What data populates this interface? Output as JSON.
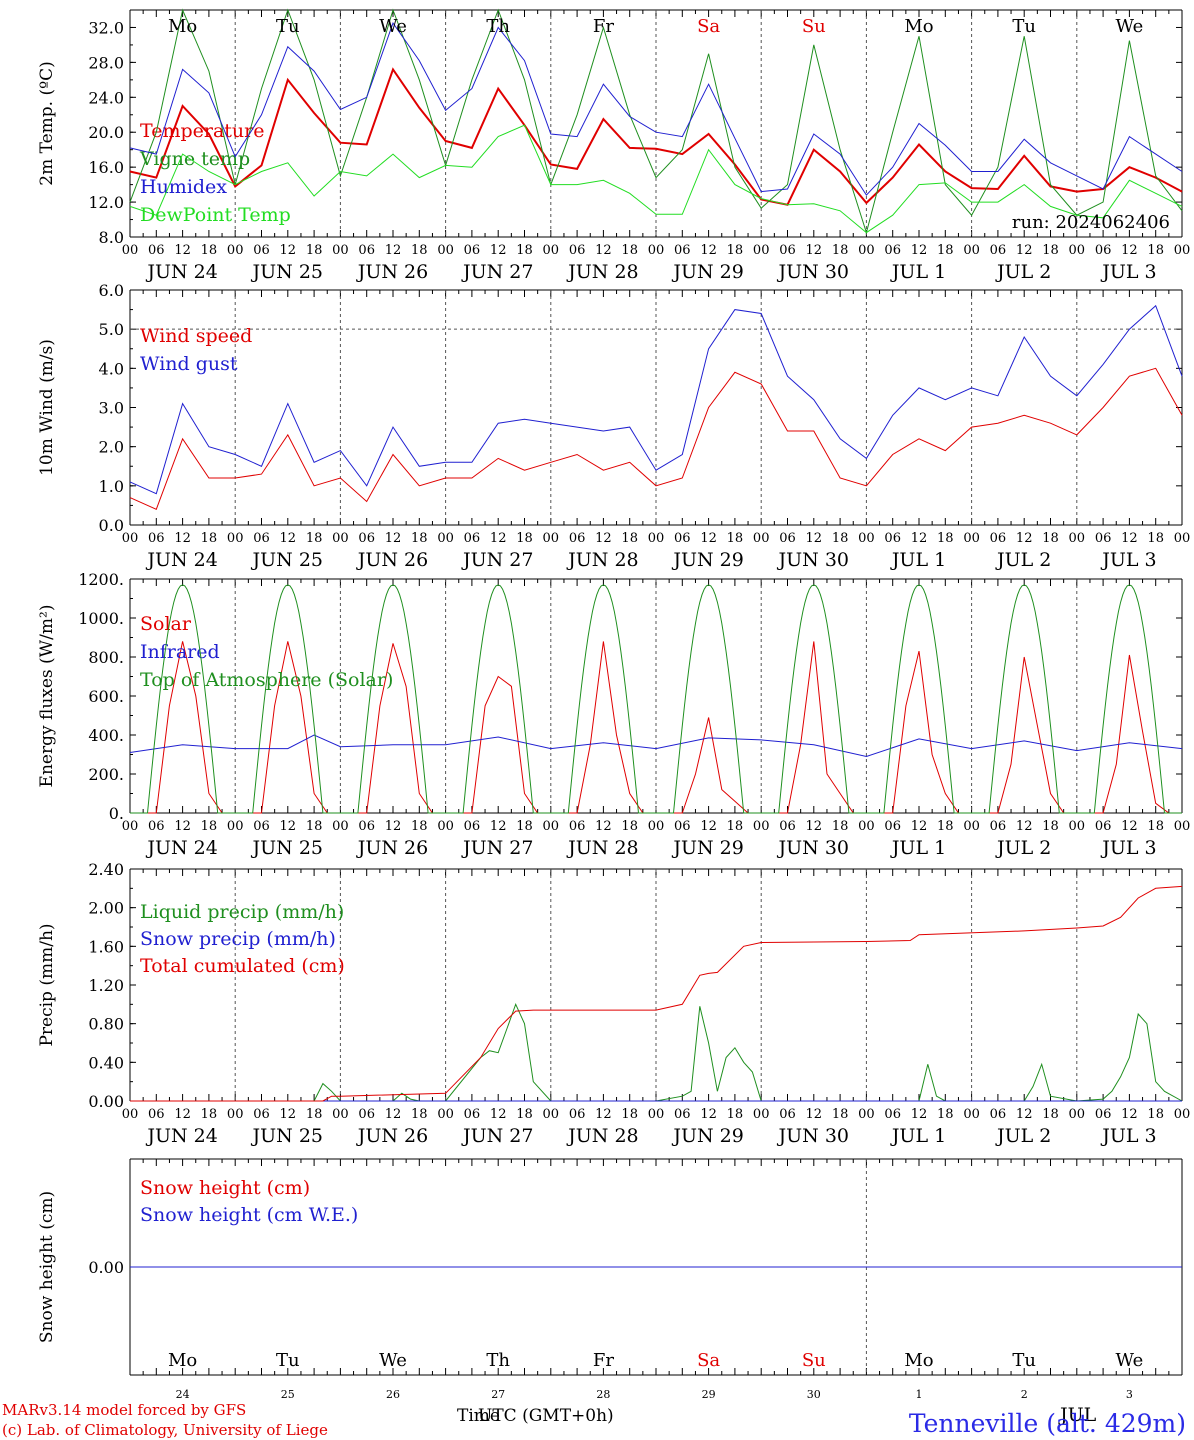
{
  "days": [
    "JUN 24",
    "JUN 25",
    "JUN 26",
    "JUN 27",
    "JUN 28",
    "JUN 29",
    "JUN 30",
    "JUL  1",
    "JUL  2",
    "JUL  3"
  ],
  "weekdays": [
    "Mo",
    "Tu",
    "We",
    "Th",
    "Fr",
    "Sa",
    "Su",
    "Mo",
    "Tu",
    "We"
  ],
  "weekday_colors": [
    "#000",
    "#000",
    "#000",
    "#000",
    "#000",
    "#e00000",
    "#e00000",
    "#000",
    "#000",
    "#000"
  ],
  "hour_ticks": [
    "00",
    "06",
    "12",
    "18"
  ],
  "end_tick": "00",
  "bottom_day_numbers": [
    "24",
    "25",
    "26",
    "27",
    "28",
    "29",
    "30",
    "1",
    "2",
    "3"
  ],
  "run_label": "run: 2024062406",
  "footer": {
    "line1": "MARv3.14 model forced by GFS",
    "line2": "(c) Lab. of Climatology, University of Liege",
    "xlabel": "Time",
    "xlabel2": "UTC (GMT+0h)",
    "month": "JUL",
    "location": "Tenneville (alt. 429m)"
  },
  "chart_data": [
    {
      "type": "line",
      "ylabel": "2m Temp. (ºC)",
      "ylim": [
        8,
        34
      ],
      "yticks": [
        "8.0",
        "12.0",
        "16.0",
        "20.0",
        "24.0",
        "28.0",
        "32.0"
      ],
      "ytick_values": [
        8,
        12,
        16,
        20,
        24,
        28,
        32
      ],
      "x_unit": "hours since 2024-06-24 00 UTC",
      "series": [
        {
          "name": "Temperature",
          "color": "#e00000",
          "x": [
            0,
            6,
            12,
            18,
            24,
            30,
            36,
            42,
            48,
            54,
            60,
            66,
            72,
            78,
            84,
            90,
            96,
            102,
            108,
            114,
            120,
            126,
            132,
            138,
            144,
            150,
            156,
            162,
            168,
            174,
            180,
            186,
            192,
            198,
            204,
            210,
            216,
            222,
            228,
            234,
            240
          ],
          "values": [
            15.5,
            14.8,
            23.0,
            19.8,
            13.8,
            16.2,
            26.0,
            22.2,
            18.8,
            18.6,
            27.2,
            22.8,
            19.0,
            18.2,
            25.0,
            20.8,
            16.3,
            15.8,
            21.5,
            18.2,
            18.1,
            17.5,
            19.8,
            16.3,
            12.3,
            11.7,
            18.0,
            15.5,
            11.9,
            14.8,
            18.6,
            15.5,
            13.6,
            13.5,
            17.3,
            13.8,
            13.2,
            13.5,
            16.0,
            14.8,
            13.2
          ],
          "width": 2
        },
        {
          "name": "Vigne temp",
          "color": "#1f8f1f",
          "x": [
            0,
            6,
            12,
            18,
            24,
            30,
            36,
            42,
            48,
            54,
            60,
            66,
            72,
            78,
            84,
            90,
            96,
            102,
            108,
            114,
            120,
            126,
            132,
            138,
            144,
            150,
            156,
            162,
            168,
            174,
            180,
            186,
            192,
            198,
            204,
            210,
            216,
            222,
            228,
            234,
            240
          ],
          "values": [
            12.0,
            20.0,
            34.0,
            27.0,
            14.0,
            25.0,
            34.0,
            26.0,
            15.0,
            24.0,
            34.0,
            26.0,
            16.2,
            26.0,
            34.0,
            26.0,
            14.0,
            22.0,
            32.0,
            22.0,
            14.8,
            18.0,
            29.0,
            16.0,
            11.3,
            14.0,
            30.0,
            18.0,
            8.5,
            20.0,
            31.0,
            14.0,
            10.5,
            16.0,
            31.0,
            14.0,
            10.5,
            12.0,
            30.5,
            15.0,
            11.0
          ],
          "width": 1
        },
        {
          "name": "Humidex",
          "color": "#2020d0",
          "x": [
            0,
            6,
            12,
            18,
            24,
            30,
            36,
            42,
            48,
            54,
            60,
            66,
            72,
            78,
            84,
            90,
            96,
            102,
            108,
            114,
            120,
            126,
            132,
            138,
            144,
            150,
            156,
            162,
            168,
            174,
            180,
            186,
            192,
            198,
            204,
            210,
            216,
            222,
            228,
            234,
            240
          ],
          "values": [
            18.2,
            17.5,
            27.2,
            24.5,
            17.2,
            22.0,
            29.8,
            27.0,
            22.6,
            24.0,
            32.5,
            28.2,
            22.5,
            25.0,
            32.0,
            28.2,
            19.8,
            19.5,
            25.5,
            21.8,
            20.0,
            19.5,
            25.5,
            19.3,
            13.2,
            13.5,
            19.8,
            17.5,
            12.8,
            16.0,
            21.0,
            18.5,
            15.5,
            15.5,
            19.2,
            16.5,
            15.0,
            13.5,
            19.5,
            17.5,
            15.5
          ],
          "width": 1
        },
        {
          "name": "DewPoint Temp",
          "color": "#22dd22",
          "x": [
            0,
            6,
            12,
            18,
            24,
            30,
            36,
            42,
            48,
            54,
            60,
            66,
            72,
            78,
            84,
            90,
            96,
            102,
            108,
            114,
            120,
            126,
            132,
            138,
            144,
            150,
            156,
            162,
            168,
            174,
            180,
            186,
            192,
            198,
            204,
            210,
            216,
            222,
            228,
            234,
            240
          ],
          "values": [
            11.5,
            10.5,
            17.5,
            15.5,
            14.0,
            15.5,
            16.5,
            12.7,
            15.5,
            15.0,
            17.5,
            14.8,
            16.2,
            16.0,
            19.5,
            20.8,
            14.0,
            14.0,
            14.5,
            13.0,
            10.6,
            10.6,
            18.0,
            14.0,
            12.4,
            11.7,
            11.8,
            11.0,
            8.5,
            10.5,
            14.0,
            14.2,
            12.0,
            12.0,
            14.0,
            11.5,
            10.5,
            10.2,
            14.5,
            13.0,
            11.5
          ],
          "width": 1
        }
      ]
    },
    {
      "type": "line",
      "ylabel": "10m Wind (m/s)",
      "ylim": [
        0,
        6
      ],
      "yticks": [
        "0.0",
        "1.0",
        "2.0",
        "3.0",
        "4.0",
        "5.0",
        "6.0"
      ],
      "ytick_values": [
        0,
        1,
        2,
        3,
        4,
        5,
        6
      ],
      "ref_line": 5.0,
      "x_unit": "hours since 2024-06-24 00 UTC",
      "series": [
        {
          "name": "Wind speed",
          "color": "#e00000",
          "x": [
            0,
            6,
            12,
            18,
            24,
            30,
            36,
            42,
            48,
            54,
            60,
            66,
            72,
            78,
            84,
            90,
            96,
            102,
            108,
            114,
            120,
            126,
            132,
            138,
            144,
            150,
            156,
            162,
            168,
            174,
            180,
            186,
            192,
            198,
            204,
            210,
            216,
            222,
            228,
            234,
            240
          ],
          "values": [
            0.7,
            0.4,
            2.2,
            1.2,
            1.2,
            1.3,
            2.3,
            1.0,
            1.2,
            0.6,
            1.8,
            1.0,
            1.2,
            1.2,
            1.7,
            1.4,
            1.6,
            1.8,
            1.4,
            1.6,
            1.0,
            1.2,
            3.0,
            3.9,
            3.6,
            2.4,
            2.4,
            1.2,
            1.0,
            1.8,
            2.2,
            1.9,
            2.5,
            2.6,
            2.8,
            2.6,
            2.3,
            3.0,
            3.8,
            4.0,
            2.8
          ],
          "width": 1
        },
        {
          "name": "Wind gust",
          "color": "#2020d0",
          "x": [
            0,
            6,
            12,
            18,
            24,
            30,
            36,
            42,
            48,
            54,
            60,
            66,
            72,
            78,
            84,
            90,
            96,
            102,
            108,
            114,
            120,
            126,
            132,
            138,
            144,
            150,
            156,
            162,
            168,
            174,
            180,
            186,
            192,
            198,
            204,
            210,
            216,
            222,
            228,
            234,
            240
          ],
          "values": [
            1.1,
            0.8,
            3.1,
            2.0,
            1.8,
            1.5,
            3.1,
            1.6,
            1.9,
            1.0,
            2.5,
            1.5,
            1.6,
            1.6,
            2.6,
            2.7,
            2.6,
            2.5,
            2.4,
            2.5,
            1.4,
            1.8,
            4.5,
            5.5,
            5.4,
            3.8,
            3.2,
            2.2,
            1.7,
            2.8,
            3.5,
            3.2,
            3.5,
            3.3,
            4.8,
            3.8,
            3.3,
            4.1,
            5.0,
            5.6,
            3.8
          ],
          "width": 1
        }
      ]
    },
    {
      "type": "line",
      "ylabel": "Energy fluxes (W/m²)",
      "ylim": [
        0,
        1200
      ],
      "yticks": [
        "0.",
        "200.",
        "400.",
        "600.",
        "800.",
        "1000.",
        "1200."
      ],
      "ytick_values": [
        0,
        200,
        400,
        600,
        800,
        1000,
        1200
      ],
      "x_unit": "hours since 2024-06-24 00 UTC",
      "series": [
        {
          "name": "Solar",
          "color": "#e00000",
          "x": [
            0,
            6,
            9,
            12,
            15,
            18,
            21,
            24,
            30,
            33,
            36,
            39,
            42,
            45,
            48,
            54,
            57,
            60,
            63,
            66,
            69,
            72,
            78,
            81,
            84,
            87,
            90,
            93,
            96,
            102,
            105,
            108,
            111,
            114,
            117,
            120,
            126,
            129,
            132,
            135,
            138,
            141,
            144,
            150,
            153,
            156,
            159,
            162,
            165,
            168,
            174,
            177,
            180,
            183,
            186,
            189,
            192,
            198,
            201,
            204,
            207,
            210,
            213,
            216,
            222,
            225,
            228,
            231,
            234,
            237,
            240
          ],
          "values": [
            0,
            0,
            550,
            880,
            600,
            100,
            0,
            0,
            0,
            550,
            880,
            600,
            100,
            0,
            0,
            0,
            550,
            870,
            650,
            100,
            0,
            0,
            0,
            550,
            700,
            650,
            100,
            0,
            0,
            0,
            350,
            880,
            400,
            100,
            0,
            0,
            0,
            200,
            490,
            120,
            60,
            0,
            0,
            0,
            350,
            880,
            200,
            100,
            0,
            0,
            0,
            550,
            830,
            300,
            100,
            0,
            0,
            0,
            250,
            800,
            450,
            100,
            0,
            0,
            0,
            250,
            810,
            420,
            50,
            0,
            0
          ],
          "width": 1
        },
        {
          "name": "Infrared",
          "color": "#2020d0",
          "x": [
            0,
            12,
            24,
            36,
            42,
            48,
            60,
            72,
            84,
            96,
            108,
            120,
            132,
            144,
            156,
            168,
            180,
            192,
            204,
            216,
            228,
            240
          ],
          "values": [
            310,
            350,
            330,
            330,
            400,
            340,
            350,
            350,
            390,
            330,
            360,
            330,
            385,
            375,
            350,
            290,
            380,
            330,
            370,
            320,
            360,
            330
          ],
          "width": 1
        },
        {
          "name": "Top of Atmosphere (Solar)",
          "color": "#1f8f1f",
          "peak": 1170,
          "rise_hour": 4,
          "set_hour": 20,
          "width": 1
        }
      ]
    },
    {
      "type": "line",
      "ylabel": "Precip (mm/h)",
      "ylim": [
        0,
        2.4
      ],
      "yticks": [
        "0.00",
        "0.40",
        "0.80",
        "1.20",
        "1.60",
        "2.00",
        "2.40"
      ],
      "ytick_values": [
        0,
        0.4,
        0.8,
        1.2,
        1.6,
        2.0,
        2.4
      ],
      "x_unit": "hours since 2024-06-24 00 UTC",
      "series": [
        {
          "name": "Liquid precip (mm/h)",
          "color": "#1f8f1f",
          "x": [
            0,
            42,
            44,
            46,
            48,
            60,
            62,
            64,
            66,
            72,
            80,
            82,
            84,
            86,
            88,
            90,
            92,
            96,
            120,
            126,
            128,
            130,
            132,
            134,
            136,
            138,
            140,
            142,
            144,
            150,
            168,
            180,
            182,
            184,
            186,
            192,
            204,
            206,
            208,
            210,
            216,
            222,
            224,
            226,
            228,
            230,
            232,
            234,
            236,
            240
          ],
          "values": [
            0,
            0,
            0.18,
            0.1,
            0,
            0,
            0.08,
            0.02,
            0,
            0,
            0.45,
            0.52,
            0.5,
            0.75,
            1.0,
            0.8,
            0.2,
            0,
            0,
            0.05,
            0.1,
            0.98,
            0.6,
            0.1,
            0.45,
            0.55,
            0.4,
            0.3,
            0,
            0,
            0,
            0,
            0.38,
            0.05,
            0,
            0,
            0,
            0.15,
            0.38,
            0.05,
            0,
            0.02,
            0.1,
            0.25,
            0.45,
            0.9,
            0.8,
            0.2,
            0.1,
            0
          ],
          "width": 1
        },
        {
          "name": "Snow precip (mm/h)",
          "color": "#2020d0",
          "x": [
            0,
            240
          ],
          "values": [
            0,
            0
          ],
          "width": 1
        },
        {
          "name": "Total cumulated (cm)",
          "color": "#e00000",
          "x": [
            0,
            44,
            46,
            48,
            72,
            80,
            84,
            88,
            92,
            96,
            120,
            126,
            128,
            130,
            132,
            134,
            140,
            144,
            168,
            178,
            180,
            204,
            216,
            222,
            226,
            230,
            234,
            240
          ],
          "values": [
            0,
            0,
            0.05,
            0.05,
            0.08,
            0.45,
            0.75,
            0.93,
            0.94,
            0.94,
            0.94,
            1.0,
            1.15,
            1.3,
            1.32,
            1.33,
            1.6,
            1.64,
            1.65,
            1.66,
            1.72,
            1.76,
            1.79,
            1.81,
            1.9,
            2.1,
            2.2,
            2.22
          ],
          "width": 1
        }
      ]
    },
    {
      "type": "line",
      "ylabel": "Snow height (cm)",
      "ylim": [
        -1,
        1
      ],
      "yticks": [
        "0.00"
      ],
      "ytick_values": [
        0
      ],
      "x_unit": "hours since 2024-06-24 00 UTC",
      "series": [
        {
          "name": "Snow height (cm)",
          "color": "#e00000",
          "x": [
            0,
            240
          ],
          "values": [
            0,
            0
          ],
          "width": 1
        },
        {
          "name": "Snow height (cm W.E.)",
          "color": "#2020d0",
          "x": [
            0,
            240
          ],
          "values": [
            0,
            0
          ],
          "width": 1
        }
      ]
    }
  ]
}
